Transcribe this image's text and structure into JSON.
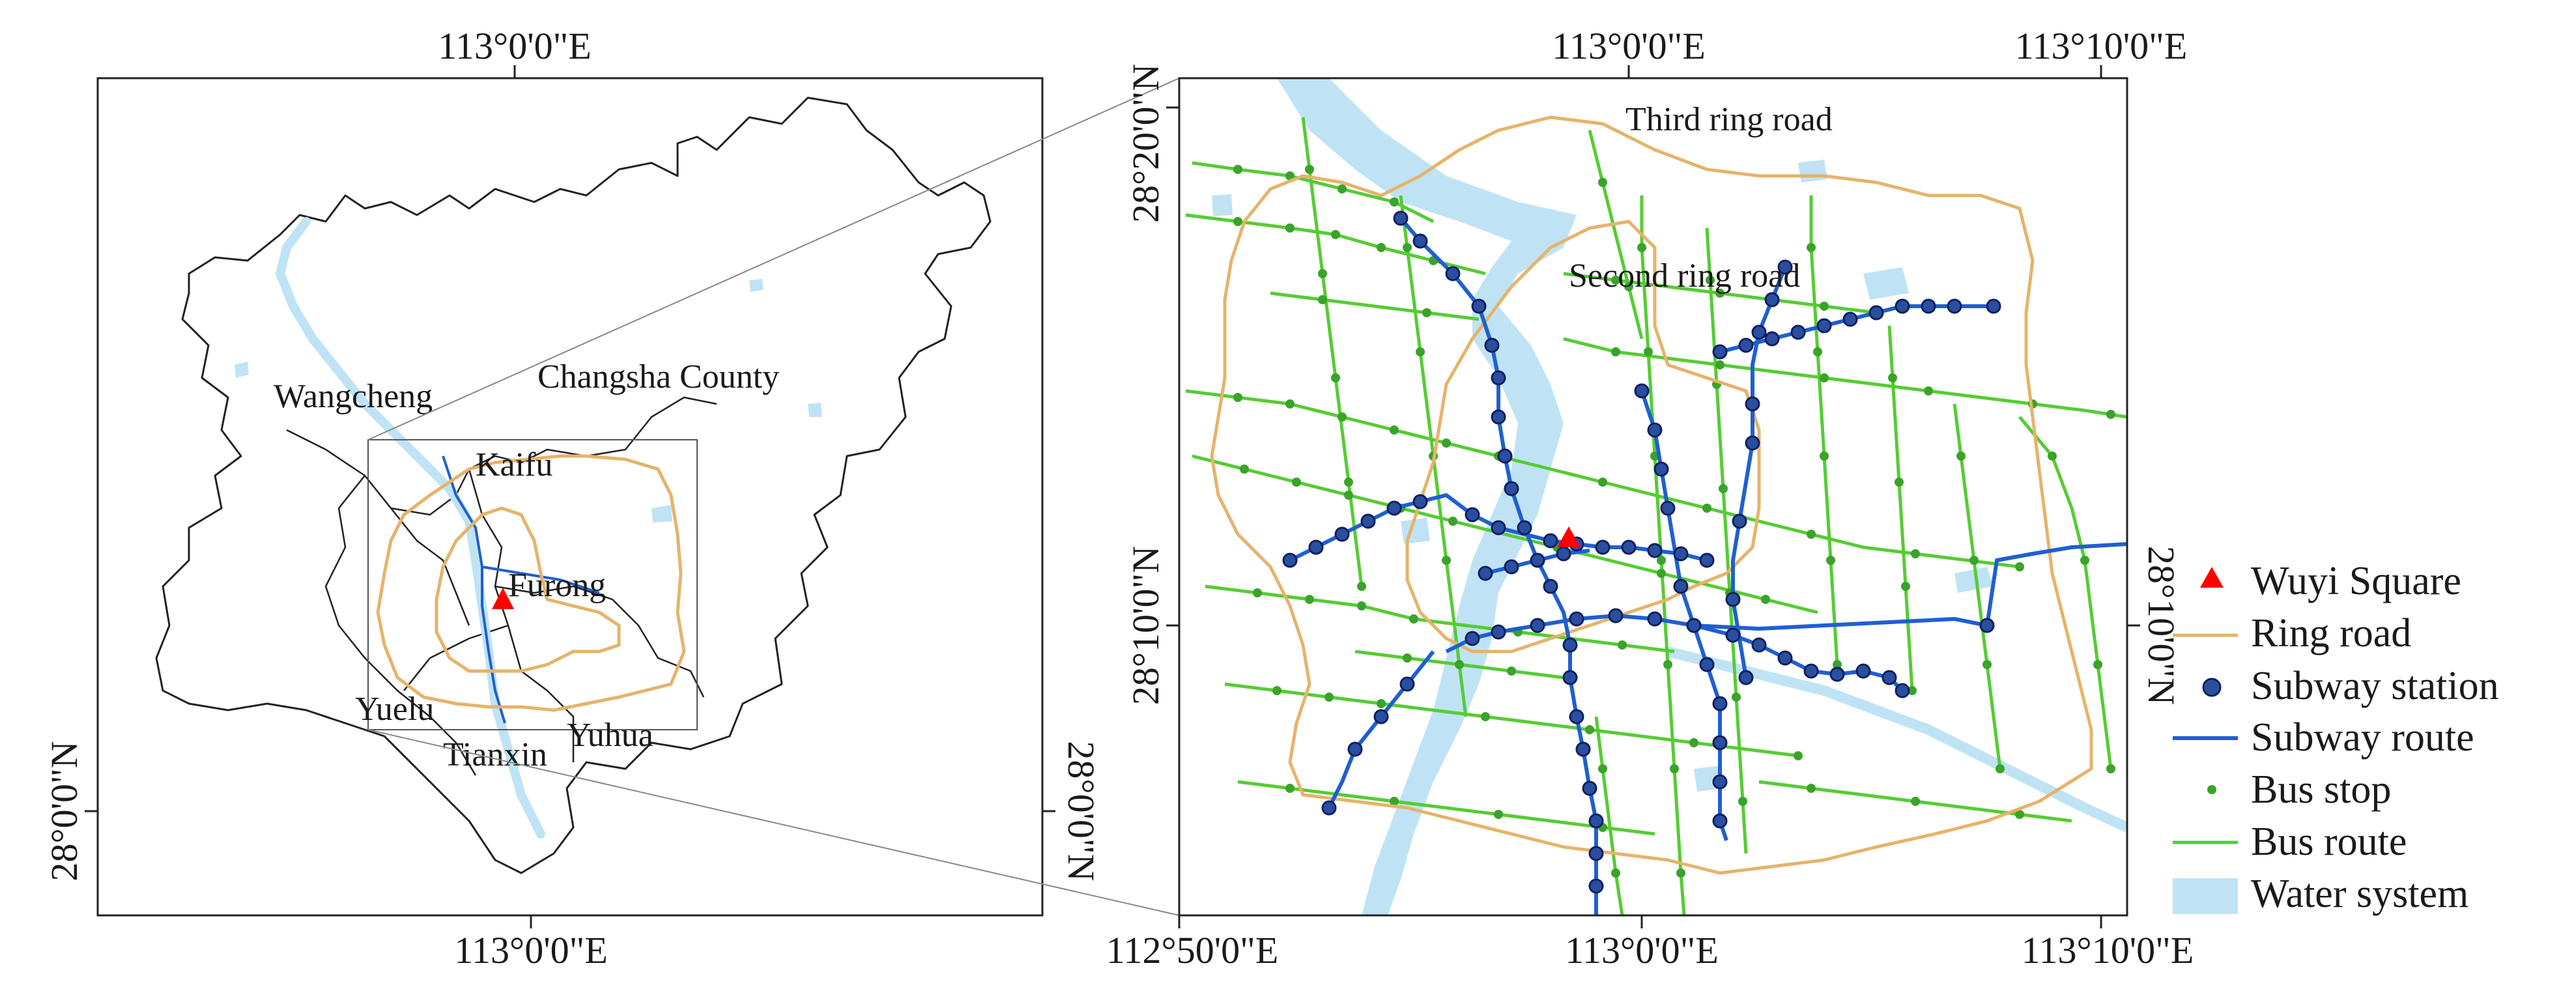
{
  "overview_map": {
    "coords": {
      "top_lon": "113°0'0\"E",
      "bottom_lon": "113°0'0\"E",
      "left_lat": "28°0'0\"N",
      "right_lat": "28°0'0\"N"
    },
    "districts": [
      "Wangcheng",
      "Changsha County",
      "Kaifu",
      "Furong",
      "Yuelu",
      "Tianxin",
      "Yuhua"
    ]
  },
  "detail_map": {
    "coords": {
      "top_lon_1": "113°0'0\"E",
      "top_lon_2": "113°10'0\"E",
      "bottom_lon_1": "112°50'0\"E",
      "bottom_lon_2": "113°0'0\"E",
      "bottom_lon_3": "113°10'0\"E",
      "left_lat_1": "28°20'0\"N",
      "left_lat_2": "28°10'0\"N",
      "right_lat": "28°10'0\"N"
    },
    "ring_labels": {
      "third": "Third ring road",
      "second": "Second ring road"
    }
  },
  "legend": {
    "items": [
      {
        "label": "Wuyi Square",
        "icon": "red-triangle",
        "color": "#ff0000"
      },
      {
        "label": "Ring road",
        "icon": "orange-line",
        "color": "#e6b36a"
      },
      {
        "label": "Subway station",
        "icon": "blue-dot",
        "color": "#2a4fa0"
      },
      {
        "label": "Subway route",
        "icon": "blue-line",
        "color": "#1f5fd0"
      },
      {
        "label": "Bus stop",
        "icon": "green-dot",
        "color": "#3aa329"
      },
      {
        "label": "Bus route",
        "icon": "green-line",
        "color": "#55cc33"
      },
      {
        "label": "Water system",
        "icon": "water-patch",
        "color": "#bfe3f5"
      }
    ]
  }
}
